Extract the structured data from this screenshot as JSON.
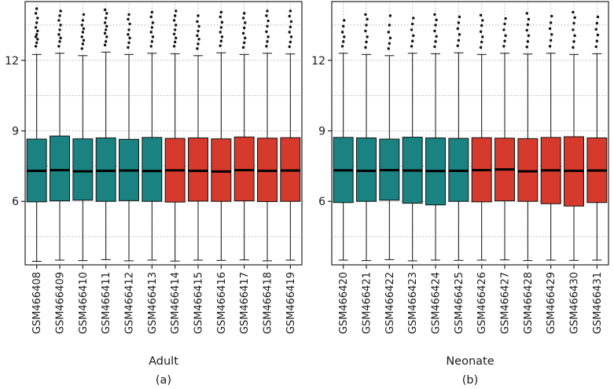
{
  "chart_data": [
    {
      "type": "boxplot",
      "panel_label": "(a)",
      "xlabel": "Adult",
      "ylim": [
        3.3,
        14.5
      ],
      "yticks": [
        6,
        9,
        12
      ],
      "grid_y": [
        4.5,
        6,
        7.5,
        9,
        10.5,
        12,
        13.5
      ],
      "grid": true,
      "legend": "none",
      "colors": {
        "teal": "#1a8382",
        "red": "#d63a2c"
      },
      "categories": [
        "GSM466408",
        "GSM466409",
        "GSM466410",
        "GSM466411",
        "GSM466412",
        "GSM466413",
        "GSM466414",
        "GSM466415",
        "GSM466416",
        "GSM466417",
        "GSM466418",
        "GSM466419"
      ],
      "boxes": [
        {
          "label": "GSM466408",
          "color": "teal",
          "low": 3.45,
          "q1": 5.98,
          "median": 7.3,
          "q3": 8.65,
          "high": 12.25,
          "outliers": [
            12.6,
            12.75,
            12.9,
            13.0,
            13.1,
            13.25,
            13.4,
            13.6,
            13.8,
            14.0,
            14.2
          ]
        },
        {
          "label": "GSM466409",
          "color": "teal",
          "low": 3.5,
          "q1": 6.02,
          "median": 7.33,
          "q3": 8.78,
          "high": 12.3,
          "outliers": [
            12.6,
            12.8,
            12.95,
            13.1,
            13.3,
            13.5,
            13.7,
            13.9,
            14.1
          ]
        },
        {
          "label": "GSM466410",
          "color": "teal",
          "low": 3.48,
          "q1": 6.05,
          "median": 7.28,
          "q3": 8.66,
          "high": 12.2,
          "outliers": [
            12.5,
            12.7,
            12.85,
            13.0,
            13.2,
            13.35,
            13.5,
            13.7,
            13.95
          ]
        },
        {
          "label": "GSM466411",
          "color": "teal",
          "low": 3.52,
          "q1": 6.0,
          "median": 7.3,
          "q3": 8.7,
          "high": 12.35,
          "outliers": [
            12.65,
            12.8,
            13.0,
            13.15,
            13.3,
            13.45,
            13.6,
            13.8,
            14.0,
            14.15
          ]
        },
        {
          "label": "GSM466412",
          "color": "teal",
          "low": 3.47,
          "q1": 6.03,
          "median": 7.31,
          "q3": 8.64,
          "high": 12.25,
          "outliers": [
            12.55,
            12.75,
            12.95,
            13.1,
            13.3,
            13.55,
            13.75,
            13.95
          ]
        },
        {
          "label": "GSM466413",
          "color": "teal",
          "low": 3.5,
          "q1": 6.0,
          "median": 7.29,
          "q3": 8.72,
          "high": 12.3,
          "outliers": [
            12.6,
            12.8,
            13.0,
            13.2,
            13.4,
            13.6,
            13.85,
            14.05
          ]
        },
        {
          "label": "GSM466414",
          "color": "red",
          "low": 3.46,
          "q1": 5.97,
          "median": 7.32,
          "q3": 8.68,
          "high": 12.28,
          "outliers": [
            12.6,
            12.78,
            12.95,
            13.12,
            13.3,
            13.5,
            13.7,
            13.9,
            14.1
          ]
        },
        {
          "label": "GSM466415",
          "color": "red",
          "low": 3.5,
          "q1": 6.01,
          "median": 7.3,
          "q3": 8.7,
          "high": 12.2,
          "outliers": [
            12.5,
            12.7,
            12.9,
            13.05,
            13.25,
            13.45,
            13.65,
            13.9
          ]
        },
        {
          "label": "GSM466416",
          "color": "red",
          "low": 3.49,
          "q1": 6.0,
          "median": 7.27,
          "q3": 8.66,
          "high": 12.32,
          "outliers": [
            12.62,
            12.82,
            13.0,
            13.2,
            13.4,
            13.62,
            13.85,
            14.05
          ]
        },
        {
          "label": "GSM466417",
          "color": "red",
          "low": 3.51,
          "q1": 6.02,
          "median": 7.33,
          "q3": 8.74,
          "high": 12.25,
          "outliers": [
            12.55,
            12.75,
            12.95,
            13.15,
            13.38,
            13.6,
            13.8,
            14.0
          ]
        },
        {
          "label": "GSM466418",
          "color": "red",
          "low": 3.47,
          "q1": 5.99,
          "median": 7.3,
          "q3": 8.69,
          "high": 12.3,
          "outliers": [
            12.6,
            12.8,
            13.0,
            13.22,
            13.45,
            13.68,
            13.9,
            14.1
          ]
        },
        {
          "label": "GSM466419",
          "color": "red",
          "low": 3.5,
          "q1": 6.0,
          "median": 7.31,
          "q3": 8.71,
          "high": 12.27,
          "outliers": [
            12.58,
            12.78,
            13.0,
            13.2,
            13.42,
            13.65,
            13.88,
            14.1
          ]
        }
      ]
    },
    {
      "type": "boxplot",
      "panel_label": "(b)",
      "xlabel": "Neonate",
      "ylim": [
        3.3,
        14.5
      ],
      "yticks": [
        6,
        9,
        12
      ],
      "grid_y": [
        4.5,
        6,
        7.5,
        9,
        10.5,
        12,
        13.5
      ],
      "grid": true,
      "legend": "none",
      "colors": {
        "teal": "#1a8382",
        "red": "#d63a2c"
      },
      "categories": [
        "GSM466420",
        "GSM466421",
        "GSM466422",
        "GSM466423",
        "GSM466424",
        "GSM466425",
        "GSM466426",
        "GSM466427",
        "GSM466428",
        "GSM466429",
        "GSM466430",
        "GSM466431"
      ],
      "boxes": [
        {
          "label": "GSM466420",
          "color": "teal",
          "low": 3.5,
          "q1": 5.95,
          "median": 7.32,
          "q3": 8.72,
          "high": 12.3,
          "outliers": [
            12.6,
            12.8,
            13.0,
            13.2,
            13.45,
            13.7
          ]
        },
        {
          "label": "GSM466421",
          "color": "teal",
          "low": 3.48,
          "q1": 6.0,
          "median": 7.3,
          "q3": 8.7,
          "high": 12.25,
          "outliers": [
            12.55,
            12.78,
            13.0,
            13.25,
            13.5,
            13.75,
            13.95
          ]
        },
        {
          "label": "GSM466422",
          "color": "teal",
          "low": 3.52,
          "q1": 6.05,
          "median": 7.33,
          "q3": 8.65,
          "high": 12.2,
          "outliers": [
            12.5,
            12.72,
            12.95,
            13.2,
            13.5,
            13.9
          ]
        },
        {
          "label": "GSM466423",
          "color": "teal",
          "low": 3.47,
          "q1": 5.92,
          "median": 7.31,
          "q3": 8.73,
          "high": 12.3,
          "outliers": [
            12.6,
            12.82,
            13.05,
            13.3,
            13.55,
            13.8
          ]
        },
        {
          "label": "GSM466424",
          "color": "teal",
          "low": 3.5,
          "q1": 5.85,
          "median": 7.29,
          "q3": 8.7,
          "high": 12.28,
          "outliers": [
            12.58,
            12.8,
            13.02,
            13.25,
            13.5,
            13.72,
            13.95
          ]
        },
        {
          "label": "GSM466425",
          "color": "teal",
          "low": 3.49,
          "q1": 6.0,
          "median": 7.3,
          "q3": 8.68,
          "high": 12.32,
          "outliers": [
            12.62,
            12.85,
            13.1,
            13.35,
            13.6,
            13.85
          ]
        },
        {
          "label": "GSM466426",
          "color": "red",
          "low": 3.5,
          "q1": 5.98,
          "median": 7.33,
          "q3": 8.71,
          "high": 12.25,
          "outliers": [
            12.55,
            12.78,
            13.0,
            13.22,
            13.48,
            13.7,
            13.92
          ]
        },
        {
          "label": "GSM466427",
          "color": "red",
          "low": 3.51,
          "q1": 6.02,
          "median": 7.36,
          "q3": 8.69,
          "high": 12.3,
          "outliers": [
            12.6,
            12.82,
            13.05,
            13.3,
            13.55,
            13.78
          ]
        },
        {
          "label": "GSM466428",
          "color": "red",
          "low": 3.48,
          "q1": 6.0,
          "median": 7.28,
          "q3": 8.67,
          "high": 12.27,
          "outliers": [
            12.57,
            12.8,
            13.05,
            13.28,
            13.52,
            13.75,
            14.0
          ]
        },
        {
          "label": "GSM466429",
          "color": "red",
          "low": 3.5,
          "q1": 5.9,
          "median": 7.32,
          "q3": 8.72,
          "high": 12.3,
          "outliers": [
            12.6,
            12.85,
            13.1,
            13.35,
            13.6,
            13.88
          ]
        },
        {
          "label": "GSM466430",
          "color": "red",
          "low": 3.49,
          "q1": 5.8,
          "median": 7.3,
          "q3": 8.75,
          "high": 12.25,
          "outliers": [
            12.55,
            12.8,
            13.05,
            13.3,
            13.58,
            13.82,
            14.05
          ]
        },
        {
          "label": "GSM466431",
          "color": "red",
          "low": 3.5,
          "q1": 5.95,
          "median": 7.31,
          "q3": 8.7,
          "high": 12.28,
          "outliers": [
            12.58,
            12.82,
            13.08,
            13.32,
            13.58,
            13.85
          ]
        }
      ]
    }
  ]
}
